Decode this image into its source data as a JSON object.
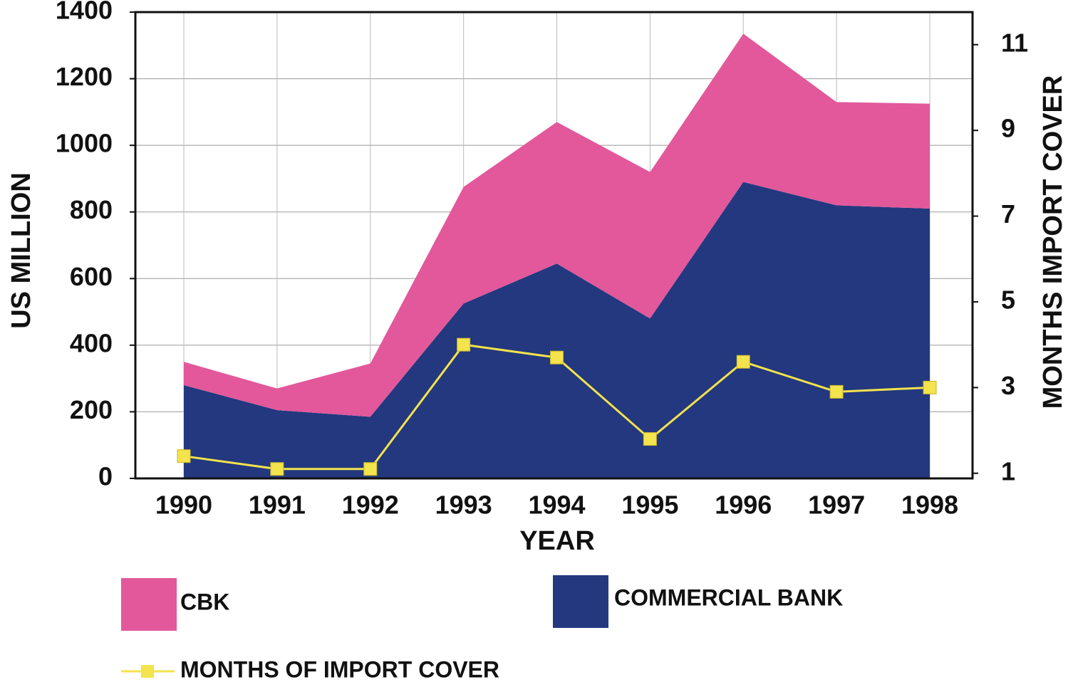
{
  "chart_data": {
    "type": "area",
    "stacked": true,
    "x_label": "YEAR",
    "y_label": "US MILLION",
    "y2_label": "MONTHS IMPORT COVER",
    "categories": [
      "1990",
      "1991",
      "1992",
      "1993",
      "1994",
      "1995",
      "1996",
      "1997",
      "1998"
    ],
    "series": [
      {
        "name": "COMMERCIAL BANK",
        "color": "#23387f",
        "values": [
          280,
          205,
          185,
          525,
          645,
          480,
          890,
          820,
          810
        ]
      },
      {
        "name": "CBK",
        "color": "#e2589b",
        "values": [
          70,
          65,
          160,
          350,
          425,
          440,
          445,
          310,
          315
        ]
      },
      {
        "name": "MONTHS OF IMPORT COVER",
        "color": "#f3e34c",
        "axis": "y2",
        "values": [
          1.4,
          1.1,
          1.1,
          4.0,
          3.7,
          1.8,
          3.6,
          2.9,
          3.0
        ]
      }
    ],
    "ylim": [
      0,
      1400
    ],
    "yticks": [
      0,
      200,
      400,
      600,
      800,
      1000,
      1200,
      1400
    ],
    "y2lim": [
      0.88,
      11.76
    ],
    "y2ticks": [
      1,
      3,
      5,
      7,
      9,
      11
    ],
    "grid": true
  }
}
